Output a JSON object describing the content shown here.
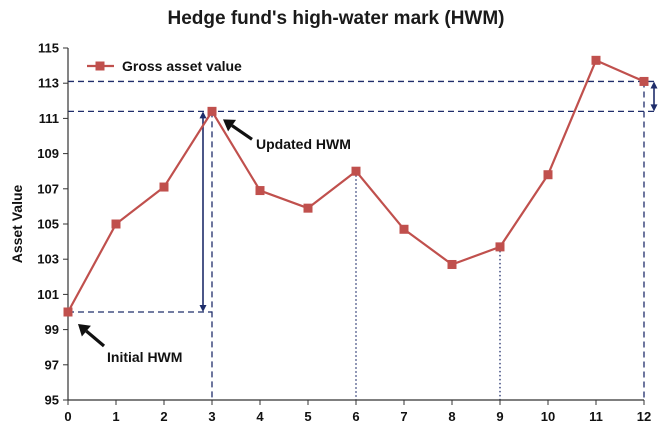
{
  "chart_data": {
    "type": "line",
    "title": "Hedge fund's high-water mark (HWM)",
    "xlabel": "",
    "ylabel": "Asset Value",
    "x": [
      0,
      1,
      2,
      3,
      4,
      5,
      6,
      7,
      8,
      9,
      10,
      11,
      12
    ],
    "xticks": [
      "0",
      "1",
      "2",
      "3",
      "4",
      "5",
      "6",
      "7",
      "8",
      "9",
      "10",
      "11",
      "12"
    ],
    "yticks": [
      "95",
      "97",
      "99",
      "101",
      "103",
      "105",
      "107",
      "109",
      "111",
      "113",
      "115"
    ],
    "ylim": [
      95,
      115
    ],
    "xlim": [
      0,
      12
    ],
    "series": [
      {
        "name": "Gross asset value",
        "color": "#c0504d",
        "values": [
          100.0,
          105.0,
          107.1,
          111.4,
          106.9,
          105.9,
          108.0,
          104.7,
          102.7,
          103.7,
          107.8,
          114.3,
          113.1
        ]
      }
    ],
    "legend_position": "top-left",
    "grid": false,
    "annotations": [
      {
        "text": "Updated HWM",
        "x": 3,
        "y": 111.4
      },
      {
        "text": "Initial HWM",
        "x": 0,
        "y": 100.0
      }
    ],
    "reference_lines": {
      "color": "#1f2d6b",
      "hwm_initial": 100.0,
      "hwm_updated": 111.4,
      "final_value": 113.1
    }
  }
}
